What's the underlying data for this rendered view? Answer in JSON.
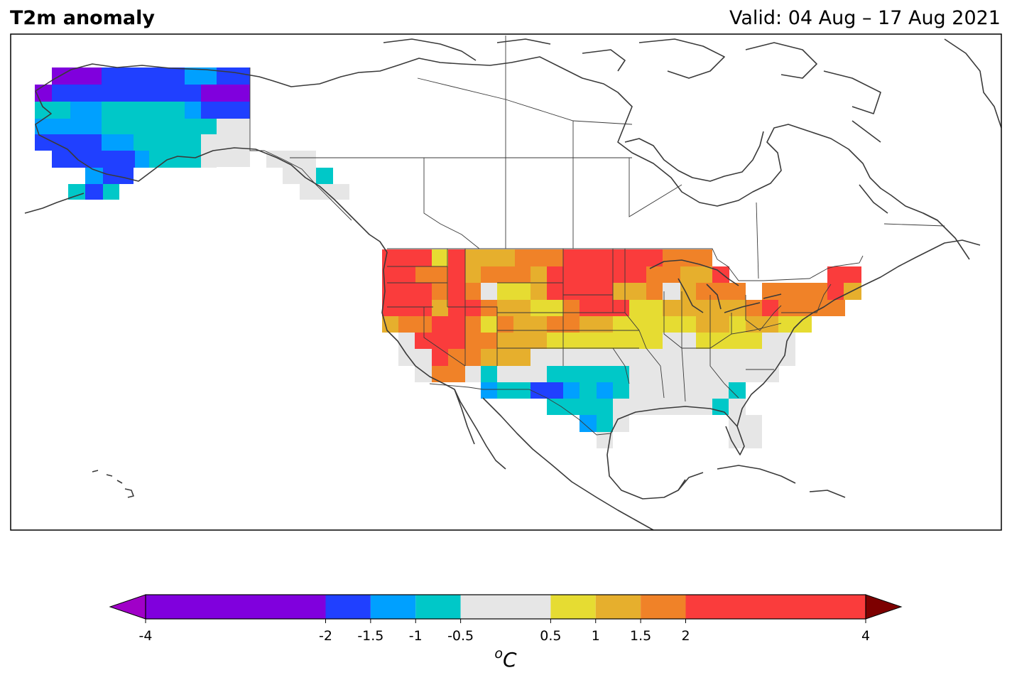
{
  "header": {
    "title": "T2m anomaly",
    "valid": "Valid: 04 Aug – 17 Aug 2021"
  },
  "colorbar": {
    "unit_superscript": "o",
    "unit": "C",
    "ticks": [
      "-4",
      "-2",
      "-1.5",
      "-1",
      "-0.5",
      "0.5",
      "1",
      "1.5",
      "2",
      "4"
    ],
    "tick_values": [
      -4,
      -2,
      -1.5,
      -1,
      -0.5,
      0.5,
      1,
      1.5,
      2,
      4
    ],
    "bins": [
      {
        "from": -4,
        "to": -2,
        "color": "#8000dd"
      },
      {
        "from": -2,
        "to": -1.5,
        "color": "#2040ff"
      },
      {
        "from": -1.5,
        "to": -1,
        "color": "#00a0ff"
      },
      {
        "from": -1,
        "to": -0.5,
        "color": "#00c8c8"
      },
      {
        "from": -0.5,
        "to": 0.5,
        "color": "#e6e6e6"
      },
      {
        "from": 0.5,
        "to": 1,
        "color": "#e6dc32"
      },
      {
        "from": 1,
        "to": 1.5,
        "color": "#e6af2d"
      },
      {
        "from": 1.5,
        "to": 2,
        "color": "#f08228"
      },
      {
        "from": 2,
        "to": 4,
        "color": "#fa3c3c"
      }
    ],
    "under_color": "#a000c8",
    "over_color": "#7d0000"
  },
  "map": {
    "projection": "lat-lon",
    "lon_range": [
      -180,
      -40
    ],
    "lat_range": [
      10,
      80
    ]
  }
}
